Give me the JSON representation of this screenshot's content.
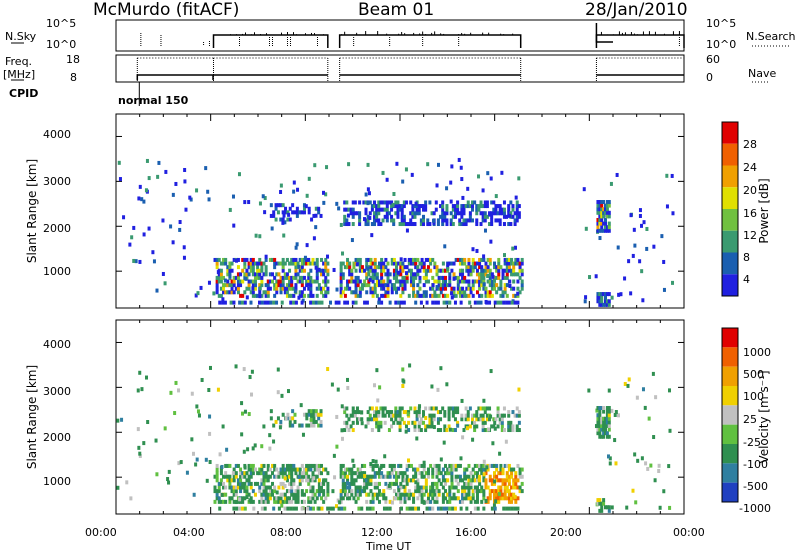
{
  "header": {
    "station": "McMurdo (fitACF)",
    "beam": "Beam 01",
    "date": "28/Jan/2010"
  },
  "top_panels": {
    "nsky_label": "N.Sky",
    "nsky_ticks": [
      "10^5",
      "10^0"
    ],
    "nsearch_label": "N.Search",
    "freq_label": "Freq.",
    "freq_unit": "[MHz]",
    "freq_ticks": [
      "18",
      "8"
    ],
    "nave_ticks": [
      "60",
      "0"
    ],
    "nave_label": "Nave",
    "cpid_label": "CPID",
    "cpid_value": "normal 150"
  },
  "chart_data": [
    {
      "type": "heatmap",
      "name": "power",
      "ylabel": "Slant Range [km]",
      "ylim": [
        180,
        4500
      ],
      "y_ticks": [
        1000,
        2000,
        3000,
        4000
      ],
      "xlim": [
        0,
        24
      ],
      "colorbar": {
        "label": "Power [dB]",
        "ticks": [
          "28",
          "24",
          "20",
          "16",
          "12",
          "8",
          "4"
        ],
        "colors": [
          "#2020e0",
          "#1a5fb0",
          "#3a9a70",
          "#70c040",
          "#e0e000",
          "#f0a000",
          "#f06000",
          "#e00000"
        ]
      }
    },
    {
      "type": "heatmap",
      "name": "velocity",
      "ylabel": "Slant Range [km]",
      "ylim": [
        180,
        4500
      ],
      "y_ticks": [
        1000,
        2000,
        3000,
        4000
      ],
      "xlim": [
        0,
        24
      ],
      "colorbar": {
        "label": "Velocity [m s⁻¹]",
        "ticks": [
          "1000",
          "500",
          "100",
          "25",
          "-25",
          "-100",
          "-500",
          "-1000"
        ],
        "colors": [
          "#2040c0",
          "#2f7fa0",
          "#2f8f50",
          "#60c040",
          "#c0c0c0",
          "#f0d000",
          "#f0a000",
          "#f06000",
          "#e00000"
        ]
      }
    }
  ],
  "x_axis": {
    "ticks": [
      "00:00",
      "04:00",
      "08:00",
      "12:00",
      "16:00",
      "20:00",
      "00:00"
    ],
    "label": "Time UT"
  }
}
